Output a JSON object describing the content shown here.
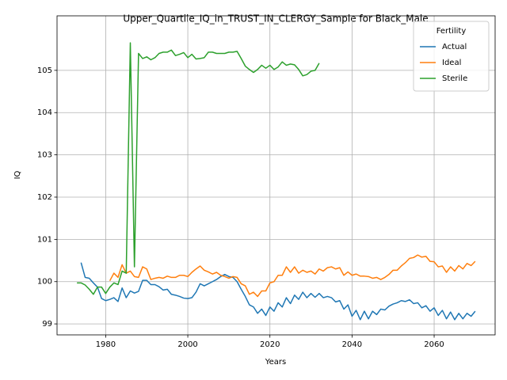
{
  "chart_data": {
    "type": "line",
    "title": "Upper_Quartile_IQ_in_TRUST_IN_CLERGY_Sample for Black_Male",
    "x_label": "Years",
    "y_label": "IQ",
    "x": [
      1973,
      1974,
      1975,
      1976,
      1977,
      1978,
      1979,
      1980,
      1981,
      1982,
      1983,
      1984,
      1985,
      1986,
      1987,
      1988,
      1989,
      1990,
      1991,
      1992,
      1993,
      1994,
      1995,
      1996,
      1997,
      1998,
      1999,
      2000,
      2001,
      2002,
      2003,
      2004,
      2005,
      2006,
      2007,
      2008,
      2009,
      2010,
      2011,
      2012,
      2013,
      2014,
      2015,
      2016,
      2017,
      2018,
      2019,
      2020,
      2021,
      2022,
      2023,
      2024,
      2025,
      2026,
      2027,
      2028,
      2029,
      2030,
      2031,
      2032,
      2033,
      2034,
      2035,
      2036,
      2037,
      2038,
      2039,
      2040,
      2041,
      2042,
      2043,
      2044,
      2045,
      2046,
      2047,
      2048,
      2049,
      2050,
      2051,
      2052,
      2053,
      2054,
      2055,
      2056,
      2057,
      2058,
      2059,
      2060,
      2061,
      2062,
      2063,
      2064,
      2065,
      2066,
      2067,
      2068,
      2069,
      2070
    ],
    "series": [
      {
        "name": "Actual",
        "color": "#1f77b4",
        "values": [
          null,
          100.45,
          100.1,
          100.08,
          99.97,
          99.87,
          99.6,
          99.55,
          99.58,
          99.62,
          99.53,
          99.85,
          99.62,
          99.78,
          99.73,
          99.77,
          100.03,
          100.03,
          99.93,
          99.93,
          99.88,
          99.8,
          99.82,
          99.7,
          99.68,
          99.65,
          99.61,
          99.6,
          99.62,
          99.75,
          99.95,
          99.9,
          99.95,
          100.0,
          100.05,
          100.12,
          100.17,
          100.12,
          100.1,
          100.0,
          99.82,
          99.65,
          99.45,
          99.4,
          99.25,
          99.35,
          99.2,
          99.4,
          99.3,
          99.5,
          99.4,
          99.62,
          99.48,
          99.68,
          99.58,
          99.75,
          99.62,
          99.72,
          99.63,
          99.72,
          99.62,
          99.65,
          99.62,
          99.52,
          99.55,
          99.35,
          99.45,
          99.18,
          99.32,
          99.1,
          99.3,
          99.12,
          99.3,
          99.22,
          99.35,
          99.33,
          99.42,
          99.47,
          99.5,
          99.55,
          99.53,
          99.57,
          99.48,
          99.5,
          99.38,
          99.43,
          99.3,
          99.38,
          99.2,
          99.32,
          99.12,
          99.28,
          99.1,
          99.25,
          99.12,
          99.25,
          99.18,
          99.3
        ]
      },
      {
        "name": "Ideal",
        "color": "#ff7f0e",
        "values": [
          null,
          null,
          null,
          null,
          null,
          null,
          null,
          null,
          100.02,
          100.2,
          100.1,
          100.4,
          100.2,
          100.25,
          100.12,
          100.1,
          100.35,
          100.3,
          100.05,
          100.08,
          100.1,
          100.08,
          100.13,
          100.1,
          100.1,
          100.15,
          100.15,
          100.12,
          100.22,
          100.3,
          100.37,
          100.27,
          100.23,
          100.18,
          100.22,
          100.15,
          100.12,
          100.08,
          100.12,
          100.1,
          99.95,
          99.9,
          99.7,
          99.75,
          99.65,
          99.78,
          99.78,
          99.97,
          100.0,
          100.15,
          100.15,
          100.35,
          100.22,
          100.35,
          100.2,
          100.27,
          100.22,
          100.25,
          100.18,
          100.3,
          100.25,
          100.33,
          100.35,
          100.3,
          100.33,
          100.15,
          100.23,
          100.15,
          100.18,
          100.13,
          100.13,
          100.12,
          100.08,
          100.1,
          100.05,
          100.1,
          100.17,
          100.27,
          100.27,
          100.37,
          100.45,
          100.55,
          100.57,
          100.63,
          100.58,
          100.6,
          100.48,
          100.47,
          100.35,
          100.37,
          100.22,
          100.35,
          100.25,
          100.38,
          100.3,
          100.43,
          100.38,
          100.48
        ]
      },
      {
        "name": "Sterile",
        "color": "#2ca02c",
        "values": [
          99.97,
          99.97,
          99.92,
          99.82,
          99.7,
          99.87,
          99.87,
          99.72,
          99.87,
          99.97,
          99.93,
          100.25,
          100.2,
          105.65,
          100.35,
          105.4,
          105.28,
          105.32,
          105.25,
          105.3,
          105.4,
          105.43,
          105.43,
          105.48,
          105.35,
          105.38,
          105.42,
          105.3,
          105.38,
          105.27,
          105.28,
          105.3,
          105.43,
          105.43,
          105.4,
          105.4,
          105.4,
          105.43,
          105.43,
          105.45,
          105.28,
          105.1,
          105.02,
          104.95,
          105.02,
          105.12,
          105.05,
          105.12,
          105.02,
          105.08,
          105.2,
          105.12,
          105.15,
          105.13,
          105.02,
          104.87,
          104.9,
          104.98,
          105.0,
          105.17,
          null,
          null,
          null,
          null,
          null,
          null,
          null,
          null,
          null,
          null,
          null,
          null,
          null,
          null,
          null,
          null,
          null,
          null,
          null,
          null,
          null,
          null,
          null,
          null,
          null,
          null,
          null,
          null,
          null,
          null,
          null,
          null,
          null,
          null,
          null,
          null,
          null,
          null
        ]
      }
    ],
    "xlim": [
      1968.15,
      2074.85
    ],
    "xticks": [
      1980,
      2000,
      2020,
      2040,
      2060
    ],
    "ylim": [
      98.74,
      106.29
    ],
    "yticks": [
      99,
      100,
      101,
      102,
      103,
      104,
      105
    ],
    "grid": true,
    "legend_title": "Fertility",
    "legend_position": "upper right"
  }
}
